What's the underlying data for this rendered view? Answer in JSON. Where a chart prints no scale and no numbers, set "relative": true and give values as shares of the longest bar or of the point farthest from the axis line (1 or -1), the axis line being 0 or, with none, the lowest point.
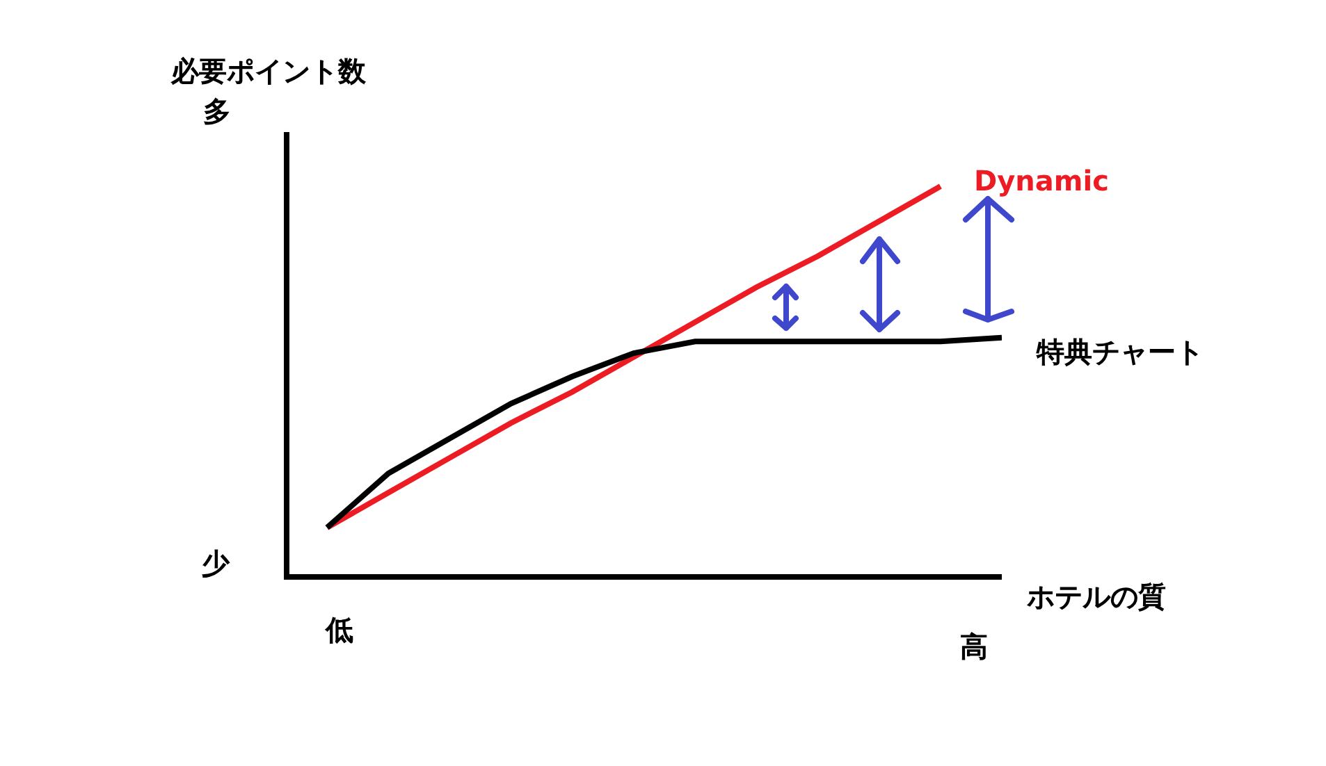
{
  "chart_data": {
    "type": "line",
    "relative": true,
    "ylabel": "必要ポイント数",
    "xlabel": "ホテルの質",
    "annotations": [
      "多",
      "少",
      "低",
      "高"
    ],
    "categories": [
      null,
      null,
      null,
      null,
      null,
      null,
      null,
      null,
      null,
      null,
      null,
      null
    ],
    "grid": false,
    "legend": false,
    "marker": "none",
    "line_style": "solid",
    "series": [
      {
        "name": "Dynamic",
        "color": "#ed1c24",
        "values": [
          0.12,
          0.21,
          0.3,
          0.39,
          0.47,
          0.56,
          0.65,
          0.74,
          0.82,
          0.91,
          1,
          null
        ]
      },
      {
        "name": "特典チャート",
        "color": "#000000",
        "values": [
          0.12,
          0.26,
          0.35,
          0.44,
          0.51,
          0.57,
          0.6,
          0.6,
          0.6,
          0.6,
          0.6,
          0.61
        ]
      }
    ]
  }
}
